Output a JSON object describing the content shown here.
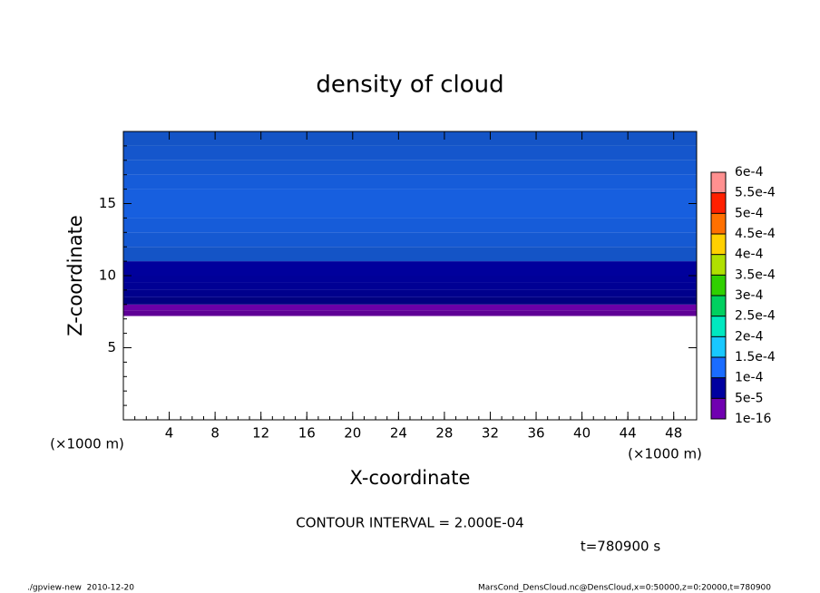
{
  "chart_data": {
    "type": "contour",
    "title": "density of cloud",
    "x_label": "X-coordinate",
    "y_label": "Z-coordinate",
    "x_unit_left": "(×1000 m)",
    "x_unit_right": "(×1000 m)",
    "xlim": [
      0,
      50
    ],
    "xticks": [
      4,
      8,
      12,
      16,
      20,
      24,
      28,
      32,
      36,
      40,
      44,
      48
    ],
    "ylim": [
      0,
      20
    ],
    "yticks": [
      5,
      10,
      15
    ],
    "z": [
      7.2,
      7.6,
      8.0,
      8.5,
      9,
      9.5,
      10,
      11,
      12,
      13,
      14,
      15,
      16,
      17,
      18,
      19
    ],
    "values": [
      2e-05,
      4e-05,
      6e-05,
      7.5e-05,
      8.5e-05,
      9e-05,
      9.5e-05,
      0.000105,
      0.000115,
      0.00012,
      0.000125,
      0.000125,
      0.00012,
      0.000115,
      0.00011,
      0.000105
    ],
    "levels": [
      {
        "value": 1e-16,
        "label": "1e-16"
      },
      {
        "value": 5e-05,
        "label": "5e-5"
      },
      {
        "value": 0.0001,
        "label": "1e-4"
      },
      {
        "value": 0.00015,
        "label": "1.5e-4"
      },
      {
        "value": 0.0002,
        "label": "2e-4"
      },
      {
        "value": 0.00025,
        "label": "2.5e-4"
      },
      {
        "value": 0.0003,
        "label": "3e-4"
      },
      {
        "value": 0.00035,
        "label": "3.5e-4"
      },
      {
        "value": 0.0004,
        "label": "4e-4"
      },
      {
        "value": 0.00045,
        "label": "4.5e-4"
      },
      {
        "value": 0.0005,
        "label": "5e-4"
      },
      {
        "value": 0.00055,
        "label": "5.5e-4"
      },
      {
        "value": 0.0006,
        "label": "6e-4"
      }
    ],
    "colors": [
      "#7000b0",
      "#0000a0",
      "#1a6cff",
      "#18c8ff",
      "#00e8c0",
      "#00d060",
      "#30d000",
      "#b0e000",
      "#ffd000",
      "#ff7000",
      "#ff2000",
      "#ff9090"
    ],
    "contour_interval": "CONTOUR INTERVAL = 2.000E-04",
    "time": "t=780900 s",
    "footer_left": "./gpview-new  2010-12-20",
    "footer_right": "MarsCond_DensCloud.nc@DensCloud,x=0:50000,z=0:20000,t=780900"
  }
}
